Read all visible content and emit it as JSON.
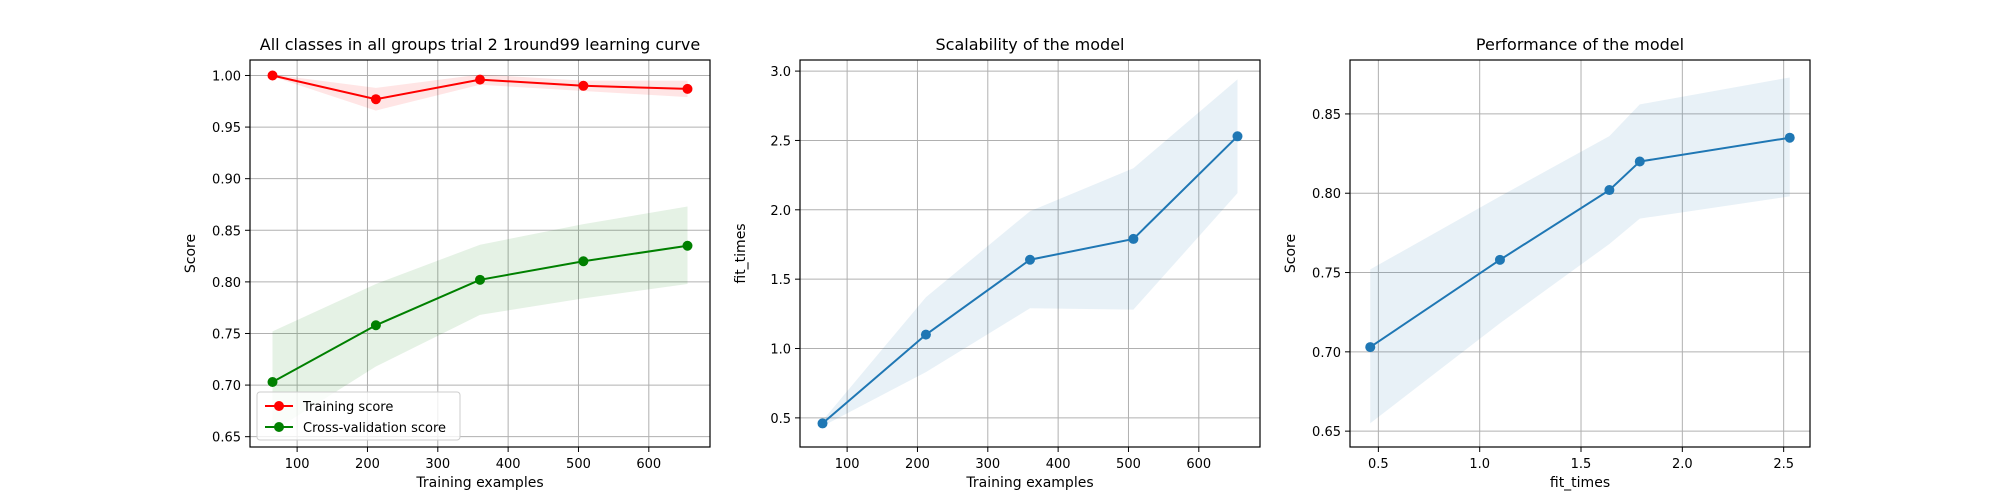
{
  "chart_data": [
    {
      "type": "line",
      "title": "All classes in all groups trial 2 1round99 learning curve",
      "xlabel": "Training examples",
      "ylabel": "Score",
      "xlim": [
        33,
        687
      ],
      "ylim": [
        0.64,
        1.015
      ],
      "xticks": [
        100,
        200,
        300,
        400,
        500,
        600
      ],
      "yticks": [
        0.65,
        0.7,
        0.75,
        0.8,
        0.85,
        0.9,
        0.95,
        1.0
      ],
      "ytick_labels": [
        "0.65",
        "0.70",
        "0.75",
        "0.80",
        "0.85",
        "0.90",
        "0.95",
        "1.00"
      ],
      "grid": true,
      "legend_position": "lower-left",
      "series": [
        {
          "name": "Training score",
          "color": "#ff0000",
          "band_color": "#ff0000",
          "x": [
            65,
            212,
            360,
            507,
            655
          ],
          "y": [
            1.0,
            0.977,
            0.996,
            0.99,
            0.987
          ],
          "band_low": [
            0.999,
            0.966,
            0.991,
            0.985,
            0.979
          ],
          "band_high": [
            1.001,
            0.988,
            1.001,
            0.995,
            0.995
          ]
        },
        {
          "name": "Cross-validation score",
          "color": "#008000",
          "band_color": "#008000",
          "x": [
            65,
            212,
            360,
            507,
            655
          ],
          "y": [
            0.703,
            0.758,
            0.802,
            0.82,
            0.835
          ],
          "band_low": [
            0.655,
            0.718,
            0.768,
            0.784,
            0.798
          ],
          "band_high": [
            0.752,
            0.798,
            0.836,
            0.856,
            0.873
          ]
        }
      ]
    },
    {
      "type": "line",
      "title": "Scalability of the model",
      "xlabel": "Training examples",
      "ylabel": "fit_times",
      "xlim": [
        33,
        687
      ],
      "ylim": [
        0.29,
        3.08
      ],
      "xticks": [
        100,
        200,
        300,
        400,
        500,
        600
      ],
      "yticks": [
        0.5,
        1.0,
        1.5,
        2.0,
        2.5,
        3.0
      ],
      "ytick_labels": [
        "0.5",
        "1.0",
        "1.5",
        "2.0",
        "2.5",
        "3.0"
      ],
      "grid": true,
      "series": [
        {
          "color": "#1f77b4",
          "band_color": "#1f77b4",
          "x": [
            65,
            212,
            360,
            507,
            655
          ],
          "y": [
            0.46,
            1.1,
            1.64,
            1.79,
            2.53
          ],
          "band_low": [
            0.44,
            0.83,
            1.29,
            1.28,
            2.12
          ],
          "band_high": [
            0.48,
            1.37,
            1.99,
            2.3,
            2.94
          ]
        }
      ]
    },
    {
      "type": "line",
      "title": "Performance of the model",
      "xlabel": "fit_times",
      "ylabel": "Score",
      "xlim": [
        0.36,
        2.63
      ],
      "ylim": [
        0.64,
        0.884
      ],
      "xticks": [
        0.5,
        1.0,
        1.5,
        2.0,
        2.5
      ],
      "xtick_labels": [
        "0.5",
        "1.0",
        "1.5",
        "2.0",
        "2.5"
      ],
      "yticks": [
        0.65,
        0.7,
        0.75,
        0.8,
        0.85
      ],
      "ytick_labels": [
        "0.65",
        "0.70",
        "0.75",
        "0.80",
        "0.85"
      ],
      "grid": true,
      "series": [
        {
          "color": "#1f77b4",
          "band_color": "#1f77b4",
          "x": [
            0.46,
            1.1,
            1.64,
            1.79,
            2.53
          ],
          "y": [
            0.703,
            0.758,
            0.802,
            0.82,
            0.835
          ],
          "band_low": [
            0.655,
            0.718,
            0.768,
            0.784,
            0.798
          ],
          "band_high": [
            0.752,
            0.798,
            0.836,
            0.856,
            0.873
          ]
        }
      ]
    }
  ]
}
